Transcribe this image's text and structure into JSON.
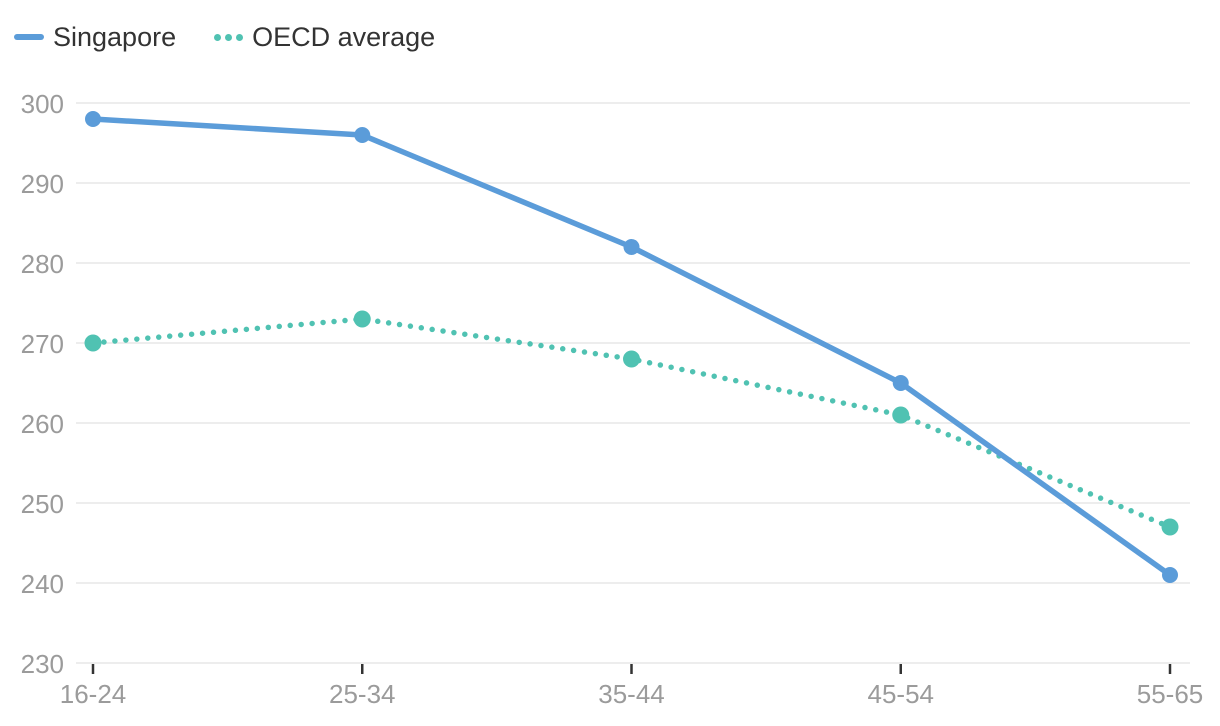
{
  "chart_data": {
    "type": "line",
    "title": "",
    "xlabel": "",
    "ylabel": "",
    "categories": [
      "16-24",
      "25-34",
      "35-44",
      "45-54",
      "55-65"
    ],
    "series": [
      {
        "name": "Singapore",
        "values": [
          298,
          296,
          282,
          265,
          241
        ],
        "color": "#5b9cd9",
        "line_style": "solid"
      },
      {
        "name": "OECD average",
        "values": [
          270,
          273,
          268,
          261,
          247
        ],
        "color": "#50c2b2",
        "line_style": "dotted"
      }
    ],
    "ylim": [
      230,
      300
    ],
    "yticks": [
      300,
      290,
      280,
      270,
      260,
      250,
      240,
      230
    ],
    "grid": true,
    "legend_position": "top-left",
    "colors": {
      "axis_label": "#9b9b9b",
      "legend_text": "#333333",
      "gridline": "#e7e7e7",
      "tick_mark": "#333333",
      "background": "#ffffff"
    }
  }
}
